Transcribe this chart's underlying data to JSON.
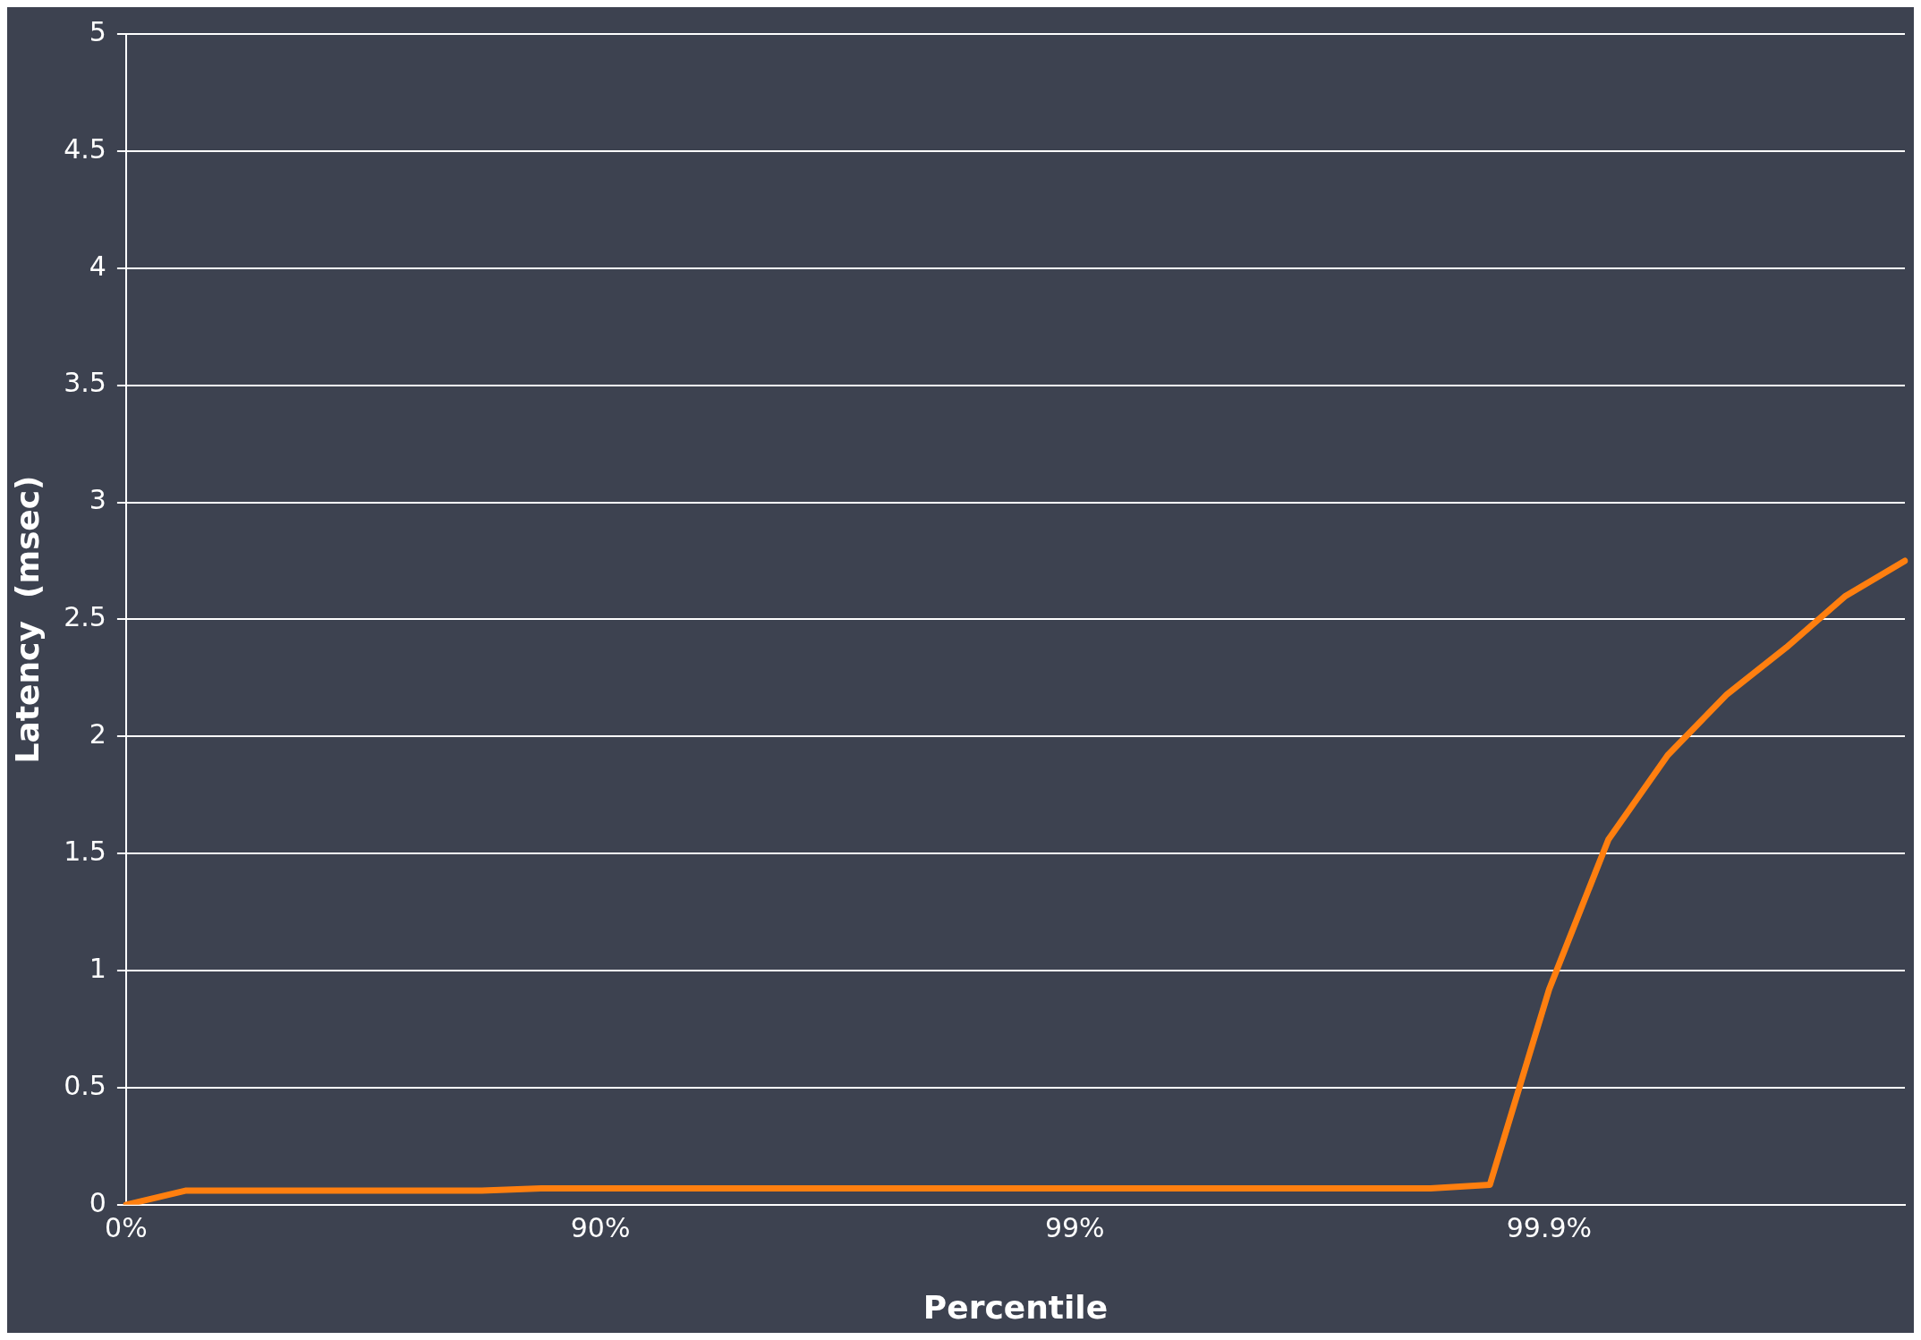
{
  "chart_data": {
    "type": "line",
    "xlabel": "Percentile",
    "ylabel": "Latency  (msec)",
    "categories": [
      "0%",
      null,
      null,
      null,
      null,
      null,
      null,
      null,
      "90%",
      null,
      null,
      null,
      null,
      null,
      null,
      null,
      "99%",
      null,
      null,
      null,
      null,
      null,
      null,
      null,
      "99.9%",
      null,
      null,
      null,
      null,
      null,
      null
    ],
    "series": [
      {
        "color": "#ff7f0f",
        "values": [
          0,
          0.06,
          0.06,
          0.06,
          0.06,
          0.06,
          0.06,
          0.07,
          0.07,
          0.07,
          0.07,
          0.07,
          0.07,
          0.07,
          0.07,
          0.07,
          0.07,
          0.07,
          0.07,
          0.07,
          0.07,
          0.07,
          0.07,
          0.085,
          0.92,
          1.56,
          1.92,
          2.18,
          2.38,
          2.6,
          2.75
        ]
      }
    ],
    "ylim": [
      0,
      5
    ],
    "yticks": [
      0,
      0.5,
      1,
      1.5,
      2,
      2.5,
      3,
      3.5,
      4,
      4.5,
      5
    ],
    "grid": "y",
    "legend": false,
    "marker": "none",
    "line_style": "solid"
  }
}
